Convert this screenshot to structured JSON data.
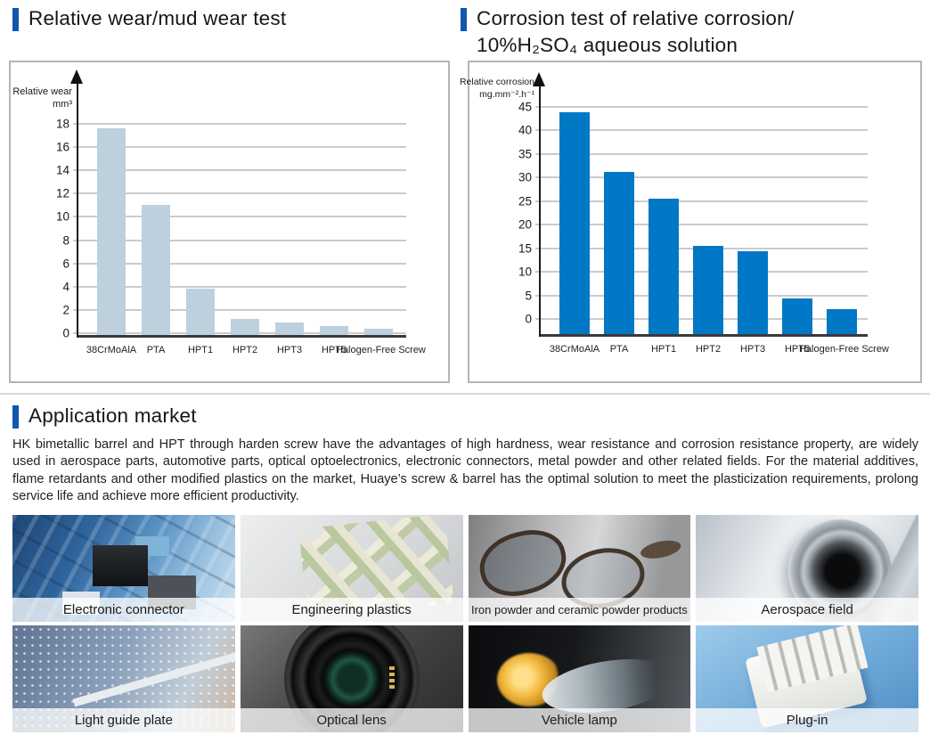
{
  "accent_color": "#1057ae",
  "sections": {
    "wear": {
      "title": "Relative wear/mud wear test"
    },
    "corrosion": {
      "title_line1": "Corrosion test of relative corrosion/",
      "title_line2": "10%H₂SO₄ aqueous solution"
    },
    "application": {
      "title": "Application market",
      "paragraph": "HK bimetallic barrel and HPT through harden screw have the advantages of high hardness, wear resistance and corrosion resistance property, are widely used in aerospace parts, automotive parts, optical optoelectronics, electronic connectors, metal powder and other related fields. For the material additives, flame retardants and other modified plastics on the market, Huaye’s screw & barrel has the optimal solution to meet the plasticization requirements, prolong service life and achieve more efficient productivity.",
      "tiles": [
        {
          "label": "Electronic connector",
          "art": "connector"
        },
        {
          "label": "Engineering plastics",
          "art": "plastics"
        },
        {
          "label": "Iron powder and ceramic powder products",
          "art": "iron"
        },
        {
          "label": "Aerospace field",
          "art": "aero"
        },
        {
          "label": "Light guide plate",
          "art": "lightguide"
        },
        {
          "label": "Optical lens",
          "art": "lens"
        },
        {
          "label": "Vehicle lamp",
          "art": "lamp"
        },
        {
          "label": "Plug-in",
          "art": "plugin"
        }
      ]
    }
  },
  "chart_data": [
    {
      "type": "bar",
      "title": "Relative wear/mud wear test",
      "ylabel_lines": [
        "Relative wear",
        "mm³"
      ],
      "categories": [
        "38CrMoAlA",
        "PTA",
        "HPT1",
        "HPT2",
        "HPT3",
        "HPT5",
        "Halogen-Free Screw"
      ],
      "values": [
        17.6,
        11,
        3.8,
        1.2,
        0.9,
        0.6,
        0.4
      ],
      "ylim": [
        0,
        18
      ],
      "ystep": 2,
      "bar_color": "#bdd0de",
      "grid": true,
      "legend": "none"
    },
    {
      "type": "bar",
      "title": "Corrosion test of relative corrosion/10%H₂SO₄ aqueous solution",
      "ylabel_lines": [
        "Relative corrosion",
        "mg.mm⁻².h⁻¹"
      ],
      "categories": [
        "38CrMoAlA",
        "PTA",
        "HPT1",
        "HPT2",
        "HPT3",
        "HPT5",
        "Halogen-Free Screw"
      ],
      "values": [
        43.8,
        31.2,
        25.6,
        15.5,
        14.3,
        4.4,
        2.1
      ],
      "ylim": [
        0,
        45
      ],
      "ystep": 5,
      "bar_color": "#0078c6",
      "grid": true,
      "legend": "none"
    }
  ]
}
